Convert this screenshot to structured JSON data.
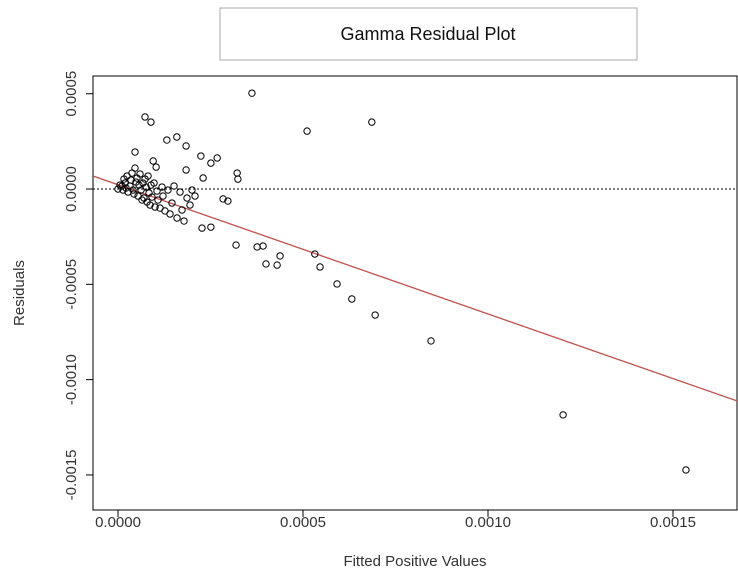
{
  "chart_data": {
    "type": "scatter",
    "title": "Gamma Residual Plot",
    "x_label": "Fitted Positive Values",
    "y_label": "Residuals",
    "xlim": [
      -6.76e-05,
      0.001673
    ],
    "ylim": [
      -0.001684,
      0.000593
    ],
    "xticks": [
      {
        "value": 0,
        "label": "0.0000"
      },
      {
        "value": 0.0005,
        "label": "0.0005"
      },
      {
        "value": 0.001,
        "label": "0.0010"
      },
      {
        "value": 0.0015,
        "label": "0.0015"
      }
    ],
    "yticks": [
      {
        "value": -0.0015,
        "label": "-0.0015"
      },
      {
        "value": -0.001,
        "label": "-0.0010"
      },
      {
        "value": -0.0005,
        "label": "-0.0005"
      },
      {
        "value": 0,
        "label": "0.0000"
      },
      {
        "value": 0.0005,
        "label": "0.0005"
      }
    ],
    "color": "#000000",
    "x": [
      7.3e-05,
      8.9e-05,
      0.000362,
      0.000511,
      0.000686,
      0.000132,
      0.000159,
      0.000184,
      4.6e-05,
      0.000224,
      0.000268,
      0.000251,
      9.5e-05,
      0.000103,
      0.000184,
      0.000322,
      0.000324,
      0.00023,
      0.000297,
      0.000284,
      0.000251,
      0.000227,
      0.000319,
      0.000376,
      0.000392,
      0.0004,
      0.00043,
      0.000438,
      0.000532,
      0.000546,
      0.000592,
      0.000632,
      0.000695,
      0.000846,
      0.001203,
      0.001535,
      0,
      5.4e-06,
      1.08e-05,
      1.35e-05,
      1.89e-05,
      2.16e-05,
      1.62e-05,
      2.43e-05,
      2.7e-05,
      3.24e-05,
      3.51e-05,
      3.78e-05,
      4.05e-05,
      4.32e-05,
      4.59e-05,
      4.86e-05,
      5.14e-05,
      5.41e-05,
      5.68e-05,
      5.95e-05,
      6.22e-05,
      6.49e-05,
      6.76e-05,
      7.03e-05,
      7.3e-05,
      7.57e-05,
      7.84e-05,
      8.11e-05,
      8.38e-05,
      8.65e-05,
      8.92e-05,
      9.19e-05,
      9.73e-05,
      0.0001,
      0.0001054,
      0.0001081,
      0.0001135,
      0.0001189,
      0.0001216,
      0.000127,
      0.0001351,
      0.0001405,
      0.0001459,
      0.0001514,
      0.0001595,
      0.0001676,
      0.000173,
      0.0001784,
      0.0001865,
      0.0001946,
      0.0002,
      0.0002081
    ],
    "values": [
      0.000378,
      0.000351,
      0.000503,
      0.000304,
      0.000351,
      0.000257,
      0.000273,
      0.000226,
      0.000194,
      0.000173,
      0.000163,
      0.000136,
      0.000147,
      0.000115,
      0.0001,
      8.4e-05,
      5.2e-05,
      5.8e-05,
      -6.3e-05,
      -5.2e-05,
      -0.0002,
      -0.000205,
      -0.000294,
      -0.000304,
      -0.000299,
      -0.000393,
      -0.000399,
      -0.000351,
      -0.000341,
      -0.000409,
      -0.000498,
      -0.000577,
      -0.000661,
      -0.000797,
      -0.001185,
      -0.001474,
      0,
      2.1e-05,
      1.57e-05,
      -5.2e-06,
      3.15e-05,
      5.2e-06,
      5.24e-05,
      6.82e-05,
      -1.57e-05,
      1.57e-05,
      4.72e-05,
      8.39e-05,
      -5.2e-06,
      -2.62e-05,
      0.00011,
      3.67e-05,
      5.77e-05,
      -3.67e-05,
      2.1e-05,
      7.87e-05,
      -5.2e-06,
      -5.77e-05,
      3.15e-05,
      -4.72e-05,
      5.24e-05,
      1.05e-05,
      -6.82e-05,
      6.82e-05,
      -2.1e-05,
      -8.39e-05,
      2.1e-05,
      -4.2e-05,
      3.15e-05,
      -9.44e-05,
      -1.05e-05,
      -5.77e-05,
      -9.97e-05,
      1.05e-05,
      -3.67e-05,
      -0.000115,
      -5.2e-06,
      -0.000131,
      -7.34e-05,
      1.57e-05,
      -0.000152,
      -1.57e-05,
      -0.00011,
      -0.000168,
      -4.72e-05,
      -8.39e-05,
      -5.2e-06,
      -3.67e-05
    ],
    "fit_line": {
      "intercept": 2.25e-05,
      "slope": -0.678,
      "color": "#c0504d"
    },
    "reference_line": {
      "y": 0,
      "color": "#000000",
      "dashed": true
    }
  }
}
